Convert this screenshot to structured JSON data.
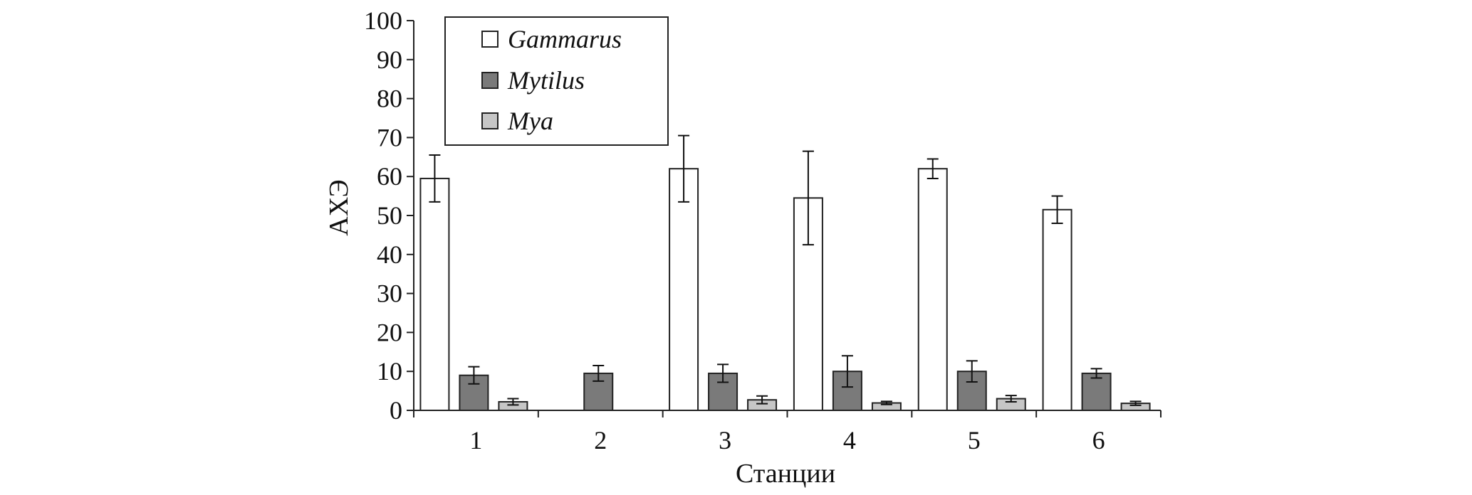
{
  "chart_data": {
    "type": "bar",
    "title": "",
    "xlabel": "Станции",
    "ylabel": "АХЭ",
    "ylim": [
      0,
      100
    ],
    "yticks": [
      "0",
      "10",
      "20",
      "30",
      "40",
      "50",
      "60",
      "70",
      "80",
      "90",
      "100"
    ],
    "categories": [
      "1",
      "2",
      "3",
      "4",
      "5",
      "6"
    ],
    "series": [
      {
        "name": "Gammarus",
        "color": "#ffffff",
        "values": [
          59.5,
          null,
          62,
          54.5,
          62,
          51.5
        ],
        "errors": [
          6,
          null,
          8.5,
          12,
          2.5,
          3.5
        ]
      },
      {
        "name": "Mytilus",
        "color": "#7a7a7a",
        "values": [
          9,
          9.5,
          9.5,
          10,
          10,
          9.5
        ],
        "errors": [
          2.2,
          2,
          2.3,
          4,
          2.7,
          1.2
        ]
      },
      {
        "name": "Mya",
        "color": "#c6c6c6",
        "values": [
          2.2,
          null,
          2.7,
          1.9,
          3,
          1.8
        ],
        "errors": [
          0.8,
          null,
          1,
          0.4,
          0.8,
          0.5
        ]
      }
    ],
    "legend": {
      "position": "top-left",
      "entries": [
        "Gammarus",
        "Mytilus",
        "Mya"
      ]
    },
    "grid": false
  }
}
